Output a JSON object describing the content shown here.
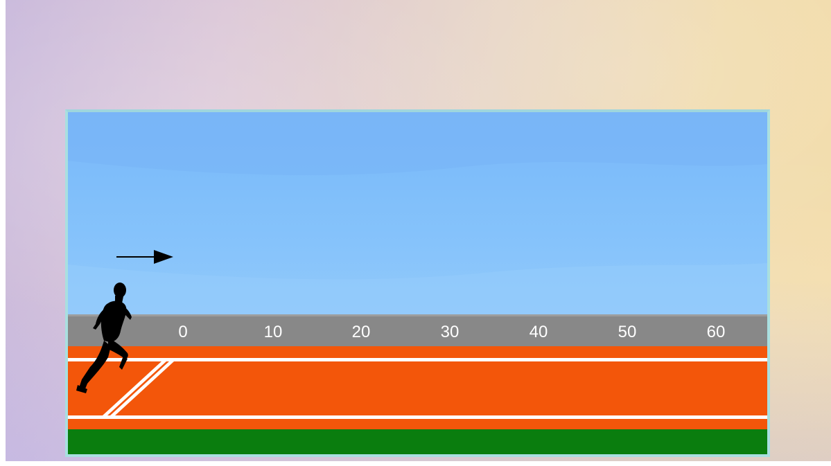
{
  "scene": {
    "sky_color": "#7fbefa",
    "ruler_color": "#888888",
    "track_color": "#f3560a",
    "lane_line_color": "#ffffff",
    "grass_color": "#0a7d0e"
  },
  "ruler": {
    "ticks": [
      "0",
      "10",
      "20",
      "30",
      "40",
      "50",
      "60"
    ]
  },
  "runner": {
    "icon": "runner-silhouette-icon",
    "direction": "right"
  },
  "arrow": {
    "icon": "arrow-right-icon"
  }
}
